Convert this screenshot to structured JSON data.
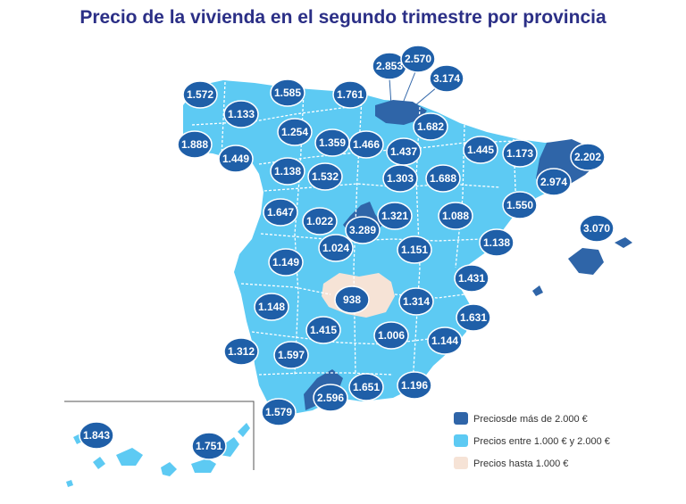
{
  "title": "Precio de la vivienda en el segundo trimestre por provincia",
  "colors": {
    "high": "#2f65a8",
    "mid": "#5dcaf3",
    "low": "#f6e3d6",
    "badge": "#1f5fa8",
    "title": "#2b2f86"
  },
  "legend": [
    {
      "label": "Preciosde más de 2.000 €",
      "color": "#2f65a8"
    },
    {
      "label": "Precios entre 1.000 € y 2.000 €",
      "color": "#5dcaf3"
    },
    {
      "label": "Precios hasta 1.000 €",
      "color": "#f6e3d6"
    }
  ],
  "provinces": [
    {
      "id": "a-coruna",
      "value": "1.572"
    },
    {
      "id": "lugo",
      "value": "1.133"
    },
    {
      "id": "pontevedra",
      "value": "1.888"
    },
    {
      "id": "ourense",
      "value": "1.449"
    },
    {
      "id": "asturias",
      "value": "1.585"
    },
    {
      "id": "cantabria",
      "value": "1.761"
    },
    {
      "id": "bizkaia",
      "value": "2.853"
    },
    {
      "id": "gipuzkoa",
      "value": "2.570"
    },
    {
      "id": "araba",
      "value": "3.174"
    },
    {
      "id": "navarra",
      "value": "1.682"
    },
    {
      "id": "leon",
      "value": "1.254"
    },
    {
      "id": "palencia",
      "value": "1.359"
    },
    {
      "id": "burgos",
      "value": "1.466"
    },
    {
      "id": "la-rioja",
      "value": "1.437"
    },
    {
      "id": "huesca",
      "value": "1.445"
    },
    {
      "id": "lleida",
      "value": "1.173"
    },
    {
      "id": "girona",
      "value": "2.202"
    },
    {
      "id": "barcelona",
      "value": "2.974"
    },
    {
      "id": "zamora",
      "value": "1.138"
    },
    {
      "id": "valladolid",
      "value": "1.532"
    },
    {
      "id": "soria",
      "value": "1.303"
    },
    {
      "id": "zaragoza",
      "value": "1.688"
    },
    {
      "id": "tarragona",
      "value": "1.550"
    },
    {
      "id": "salamanca",
      "value": "1.647"
    },
    {
      "id": "avila",
      "value": "1.022"
    },
    {
      "id": "segovia",
      "value": "1.024"
    },
    {
      "id": "madrid",
      "value": "3.289"
    },
    {
      "id": "guadalajara",
      "value": "1.321"
    },
    {
      "id": "teruel",
      "value": "1.088"
    },
    {
      "id": "castellon",
      "value": "1.138"
    },
    {
      "id": "baleares",
      "value": "3.070"
    },
    {
      "id": "caceres",
      "value": "1.149"
    },
    {
      "id": "cuenca",
      "value": "1.151"
    },
    {
      "id": "valencia",
      "value": "1.431"
    },
    {
      "id": "ciudad-real",
      "value": "938"
    },
    {
      "id": "albacete",
      "value": "1.314"
    },
    {
      "id": "badajoz",
      "value": "1.148"
    },
    {
      "id": "alicante",
      "value": "1.631"
    },
    {
      "id": "cordoba",
      "value": "1.415"
    },
    {
      "id": "jaen",
      "value": "1.006"
    },
    {
      "id": "murcia",
      "value": "1.144"
    },
    {
      "id": "huelva",
      "value": "1.312"
    },
    {
      "id": "sevilla",
      "value": "1.597"
    },
    {
      "id": "granada",
      "value": "1.651"
    },
    {
      "id": "almeria",
      "value": "1.196"
    },
    {
      "id": "malaga",
      "value": "2.596"
    },
    {
      "id": "cadiz",
      "value": "1.579"
    },
    {
      "id": "las-palmas",
      "value": "1.843"
    },
    {
      "id": "santa-cruz-tenerife",
      "value": "1.751"
    }
  ]
}
